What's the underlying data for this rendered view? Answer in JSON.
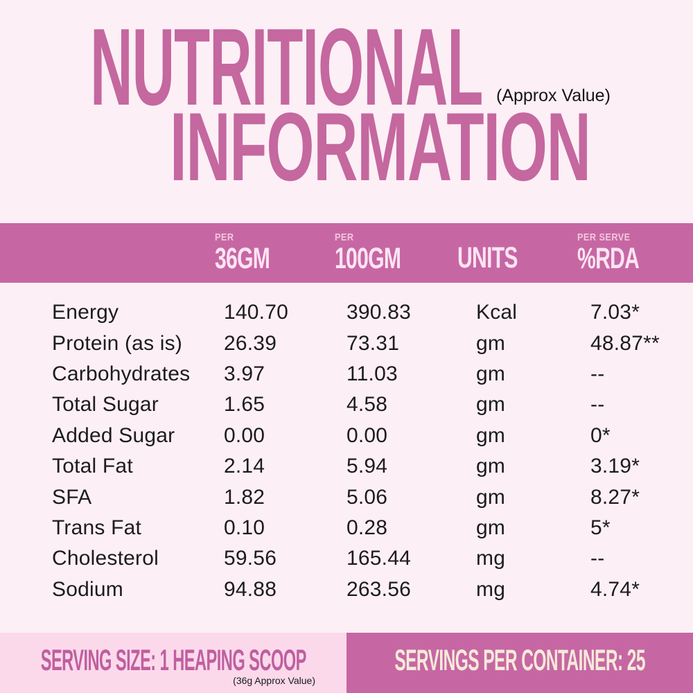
{
  "title": {
    "line1": "NUTRITIONAL",
    "line2": "INFORMATION",
    "approx_note": "(Approx Value)"
  },
  "table": {
    "columns": [
      {
        "top": "PER",
        "main": "36GM"
      },
      {
        "top": "PER",
        "main": "100GM"
      },
      {
        "top": "",
        "main": "UNITS"
      },
      {
        "top": "PER SERVE",
        "main": "%RDA"
      }
    ],
    "rows": [
      {
        "name": "Energy",
        "v36": "140.70",
        "v100": "390.83",
        "units": "Kcal",
        "rda": "7.03*"
      },
      {
        "name": "Protein (as is)",
        "v36": "26.39",
        "v100": "73.31",
        "units": "gm",
        "rda": "48.87**"
      },
      {
        "name": "Carbohydrates",
        "v36": "3.97",
        "v100": "11.03",
        "units": "gm",
        "rda": "--"
      },
      {
        "name": "Total Sugar",
        "v36": "1.65",
        "v100": "4.58",
        "units": "gm",
        "rda": "--"
      },
      {
        "name": "Added Sugar",
        "v36": "0.00",
        "v100": "0.00",
        "units": "gm",
        "rda": "0*"
      },
      {
        "name": "Total Fat",
        "v36": "2.14",
        "v100": "5.94",
        "units": "gm",
        "rda": "3.19*"
      },
      {
        "name": "SFA",
        "v36": "1.82",
        "v100": "5.06",
        "units": "gm",
        "rda": "8.27*"
      },
      {
        "name": "Trans Fat",
        "v36": "0.10",
        "v100": "0.28",
        "units": "gm",
        "rda": "5*"
      },
      {
        "name": "Cholesterol",
        "v36": "59.56",
        "v100": "165.44",
        "units": "mg",
        "rda": "--"
      },
      {
        "name": "Sodium",
        "v36": "94.88",
        "v100": "263.56",
        "units": "mg",
        "rda": "4.74*"
      }
    ]
  },
  "footer": {
    "serving_size": "SERVING SIZE: 1 HEAPING SCOOP",
    "serving_size_note": "(36g Approx Value)",
    "servings_per_container": "SERVINGS PER CONTAINER: 25"
  },
  "colors": {
    "background": "#fdeff6",
    "accent_bar": "#c667a4",
    "title_pink": "#c4689f",
    "header_text": "#fde4f2",
    "header_subtext": "#f3c6de",
    "row_text": "#1c1c1c",
    "footer_left_bg": "#fbd9eb",
    "footer_left_text": "#bf5f9f",
    "footer_right_text": "#f6ead8",
    "note_text": "#151515"
  }
}
